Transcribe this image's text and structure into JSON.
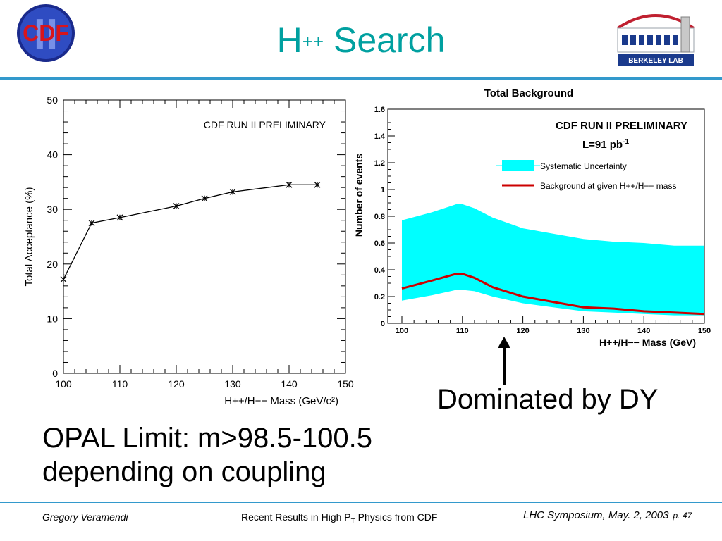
{
  "slide": {
    "title_base": "H",
    "title_sup": "++",
    "title_rest": " Search",
    "annotation_dy": "Dominated by DY",
    "opal_line1": "OPAL Limit: m>98.5-100.5",
    "opal_line2": "depending on coupling",
    "footer_author": "Gregory Veramendi",
    "footer_center_pre": "Recent Results in High P",
    "footer_center_sub": "T",
    "footer_center_post": " Physics from CDF",
    "footer_right": "LHC Symposium, May. 2, 2003",
    "footer_page": "p. 47",
    "cdf_logo_text": "CDF",
    "cdf_logo_numeral": "II",
    "lbl_logo_text": "BERKELEY LAB"
  },
  "colors": {
    "title": "#00a0a0",
    "rule": "#3399cc",
    "band": "#00ffff",
    "bkg_line": "#cc0000",
    "cdf_ring": "#1a2a8c",
    "cdf_letters": "#d8141c"
  },
  "chart_data": [
    {
      "type": "line",
      "title": "CDF RUN II PRELIMINARY",
      "xlabel": "H++/H−− Mass (GeV/c²)",
      "ylabel": "Total Acceptance (%)",
      "xlim": [
        100,
        150
      ],
      "ylim": [
        0,
        50
      ],
      "xticks": [
        "100",
        "110",
        "120",
        "130",
        "140",
        "150"
      ],
      "yticks": [
        "0",
        "10",
        "20",
        "30",
        "40",
        "50"
      ],
      "grid": false,
      "series": [
        {
          "x": [
            100,
            105,
            110,
            120,
            125,
            130,
            140,
            145
          ],
          "y": [
            17.2,
            27.5,
            28.5,
            30.6,
            32.0,
            33.2,
            34.5,
            34.5
          ]
        }
      ]
    },
    {
      "type": "area",
      "title": "Total Background",
      "title2": "CDF RUN II PRELIMINARY",
      "luminosity": "L=91 pb",
      "luminosity_sup": "-1",
      "xlabel": "H++/H−− Mass (GeV)",
      "ylabel": "Number of events",
      "xlim": [
        100,
        150
      ],
      "ylim": [
        0,
        1.6
      ],
      "xticks": [
        "100",
        "110",
        "120",
        "130",
        "140",
        "150"
      ],
      "yticks": [
        "0",
        "0.2",
        "0.4",
        "0.6",
        "0.8",
        "1",
        "1.2",
        "1.4",
        "1.6"
      ],
      "legend_position": "top-right",
      "legend": [
        "Systematic Uncertainty",
        "Background at given H++/H−− mass"
      ],
      "x": [
        100,
        105,
        109,
        110,
        112,
        115,
        120,
        125,
        130,
        135,
        140,
        145,
        150
      ],
      "series": [
        {
          "name": "Systematic Uncertainty upper",
          "values": [
            0.77,
            0.83,
            0.89,
            0.89,
            0.86,
            0.79,
            0.71,
            0.67,
            0.63,
            0.61,
            0.6,
            0.58,
            0.58
          ]
        },
        {
          "name": "Systematic Uncertainty lower",
          "values": [
            0.17,
            0.21,
            0.25,
            0.25,
            0.24,
            0.2,
            0.15,
            0.12,
            0.09,
            0.08,
            0.07,
            0.06,
            0.06
          ]
        },
        {
          "name": "Background at given H++/H−− mass",
          "values": [
            0.26,
            0.32,
            0.37,
            0.37,
            0.34,
            0.27,
            0.2,
            0.16,
            0.12,
            0.11,
            0.09,
            0.08,
            0.07
          ]
        }
      ]
    }
  ]
}
